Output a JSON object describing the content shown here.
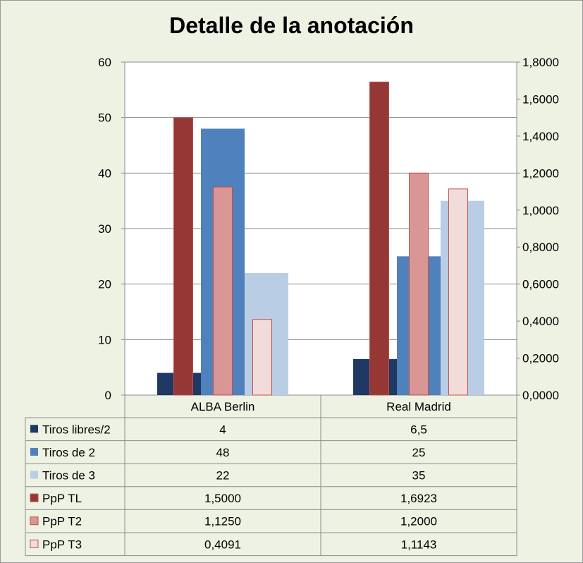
{
  "chart_data": {
    "type": "bar",
    "title": "Detalle de la anotación",
    "categories": [
      "ALBA Berlin",
      "Real Madrid"
    ],
    "primary_axis": {
      "min": 0,
      "max": 60,
      "step": 10,
      "ticks": [
        "0",
        "10",
        "20",
        "30",
        "40",
        "50",
        "60"
      ]
    },
    "secondary_axis": {
      "min": 0,
      "max": 1.8,
      "step": 0.2,
      "ticks": [
        "0,0000",
        "0,2000",
        "0,4000",
        "0,6000",
        "0,8000",
        "1,0000",
        "1,2000",
        "1,4000",
        "1,6000",
        "1,8000"
      ]
    },
    "series": [
      {
        "name": "Tiros libres/2",
        "axis": "primary",
        "color": "#1f3864",
        "values": [
          4,
          6.5
        ],
        "labels": [
          "4",
          "6,5"
        ]
      },
      {
        "name": "Tiros de 2",
        "axis": "primary",
        "color": "#4f81bd",
        "values": [
          48,
          25
        ],
        "labels": [
          "48",
          "25"
        ]
      },
      {
        "name": "Tiros de 3",
        "axis": "primary",
        "color": "#b9cde5",
        "values": [
          22,
          35
        ],
        "labels": [
          "22",
          "35"
        ]
      },
      {
        "name": "PpP TL",
        "axis": "secondary",
        "color": "#953735",
        "values": [
          1.5,
          1.6923
        ],
        "labels": [
          "1,5000",
          "1,6923"
        ]
      },
      {
        "name": "PpP T2",
        "axis": "secondary",
        "color": "#d99694",
        "values": [
          1.125,
          1.2
        ],
        "labels": [
          "1,1250",
          "1,2000"
        ]
      },
      {
        "name": "PpP T3",
        "axis": "secondary",
        "color": "#f2dcdb",
        "values": [
          0.4091,
          1.1143
        ],
        "labels": [
          "0,4091",
          "1,1143"
        ]
      }
    ]
  }
}
